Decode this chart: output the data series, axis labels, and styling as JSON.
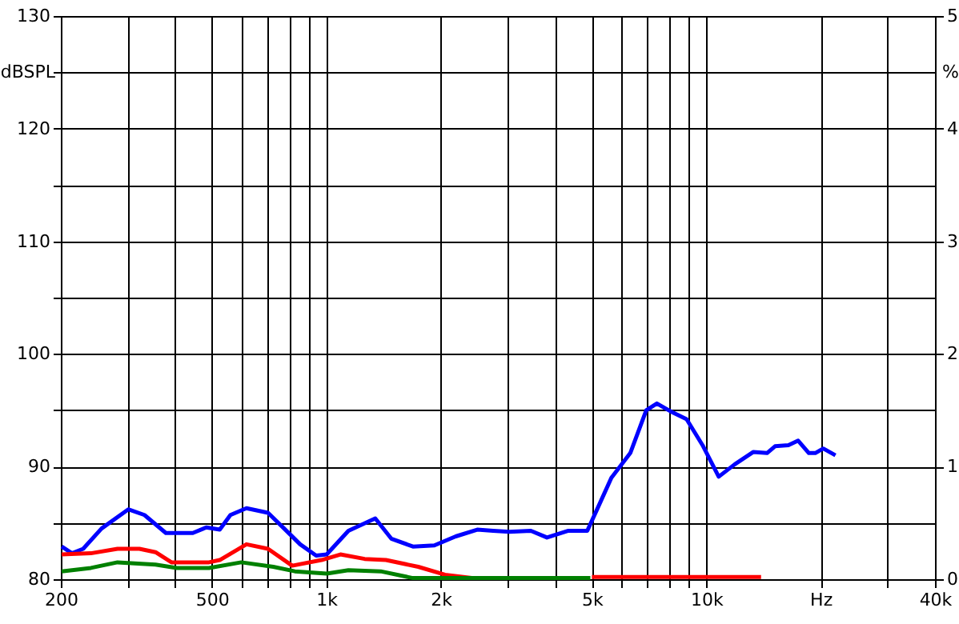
{
  "chart_data": {
    "type": "line",
    "log": "x",
    "grid": true,
    "ylabel": "dBSPL",
    "y2label": "%",
    "xlim": [
      200,
      40000
    ],
    "xticks": [
      200,
      {
        "value": 300,
        "label": null
      },
      {
        "value": 400,
        "label": null
      },
      500,
      {
        "value": 600,
        "label": null
      },
      {
        "value": 700,
        "label": null
      },
      {
        "value": 800,
        "label": null
      },
      {
        "value": 900,
        "label": null
      },
      {
        "value": 1000,
        "label": "1k"
      },
      {
        "value": 2000,
        "label": "2k"
      },
      {
        "value": 3000,
        "label": null
      },
      {
        "value": 4000,
        "label": null
      },
      {
        "value": 5000,
        "label": "5k"
      },
      {
        "value": 6000,
        "label": null
      },
      {
        "value": 7000,
        "label": null
      },
      {
        "value": 8000,
        "label": null
      },
      {
        "value": 9000,
        "label": null
      },
      {
        "value": 10000,
        "label": "10k"
      },
      {
        "value": 20000,
        "label": "Hz"
      },
      {
        "value": 30000,
        "label": null
      },
      {
        "value": 40000,
        "label": "40k"
      }
    ],
    "ylim": [
      80,
      130
    ],
    "yticks": [
      80,
      {
        "value": 85,
        "label": null
      },
      90,
      {
        "value": 95,
        "label": null
      },
      100,
      {
        "value": 105,
        "label": null
      },
      110,
      {
        "value": 115,
        "label": null
      },
      120,
      {
        "value": 125,
        "label": null
      },
      130
    ],
    "y2lim": [
      0,
      5
    ],
    "y2ticks": [
      0,
      1,
      2,
      3,
      4,
      5
    ],
    "series": [
      {
        "color": "#0000ff",
        "axis": "y",
        "x": [
          201,
          214,
          229,
          256,
          301,
          332,
          378,
          445,
          483,
          524,
          559,
          616,
          702,
          774,
          853,
          940,
          1002,
          1143,
          1345,
          1482,
          1690,
          1924,
          2190,
          2495,
          2748,
          3034,
          3454,
          3808,
          4336,
          4862,
          5192,
          5626,
          6310,
          6950,
          7414,
          8054,
          8876,
          9776,
          10784,
          11886,
          13306,
          14454,
          15172,
          16450,
          17452,
          18624,
          19366,
          20322,
          21880
        ],
        "values": [
          82.9,
          82.3,
          82.7,
          84.5,
          86.2,
          85.7,
          84.1,
          84.1,
          84.6,
          84.4,
          85.7,
          86.3,
          85.9,
          84.5,
          83.1,
          82.1,
          82.2,
          84.3,
          85.4,
          83.6,
          82.9,
          83.0,
          83.8,
          84.4,
          84.3,
          84.2,
          84.3,
          83.7,
          84.3,
          84.3,
          86.4,
          89.0,
          91.2,
          95.0,
          95.6,
          94.9,
          94.2,
          91.9,
          89.1,
          90.2,
          91.3,
          91.2,
          91.8,
          91.9,
          92.3,
          91.2,
          91.2,
          91.6,
          91.0
        ]
      },
      {
        "color": "#ff0000",
        "axis": "y2",
        "x": [
          201,
          240,
          282,
          322,
          355,
          391,
          491,
          524,
          616,
          702,
          813,
          971,
          1089,
          1261,
          1435,
          1745,
          2052,
          2414,
          2842,
          5000,
          13940
        ],
        "values": [
          0.22,
          0.23,
          0.27,
          0.27,
          0.24,
          0.15,
          0.15,
          0.17,
          0.31,
          0.27,
          0.12,
          0.17,
          0.22,
          0.18,
          0.17,
          0.11,
          0.04,
          0.01,
          null,
          0.02,
          0.02
        ]
      },
      {
        "color": "#008000",
        "axis": "y2",
        "x": [
          201,
          240,
          282,
          355,
          404,
          491,
          597,
          725,
          826,
          1002,
          1143,
          1390,
          1690,
          2052,
          4954
        ],
        "values": [
          0.07,
          0.1,
          0.15,
          0.13,
          0.1,
          0.1,
          0.15,
          0.11,
          0.07,
          0.05,
          0.08,
          0.07,
          0.01,
          0.01,
          0.01
        ]
      }
    ]
  }
}
